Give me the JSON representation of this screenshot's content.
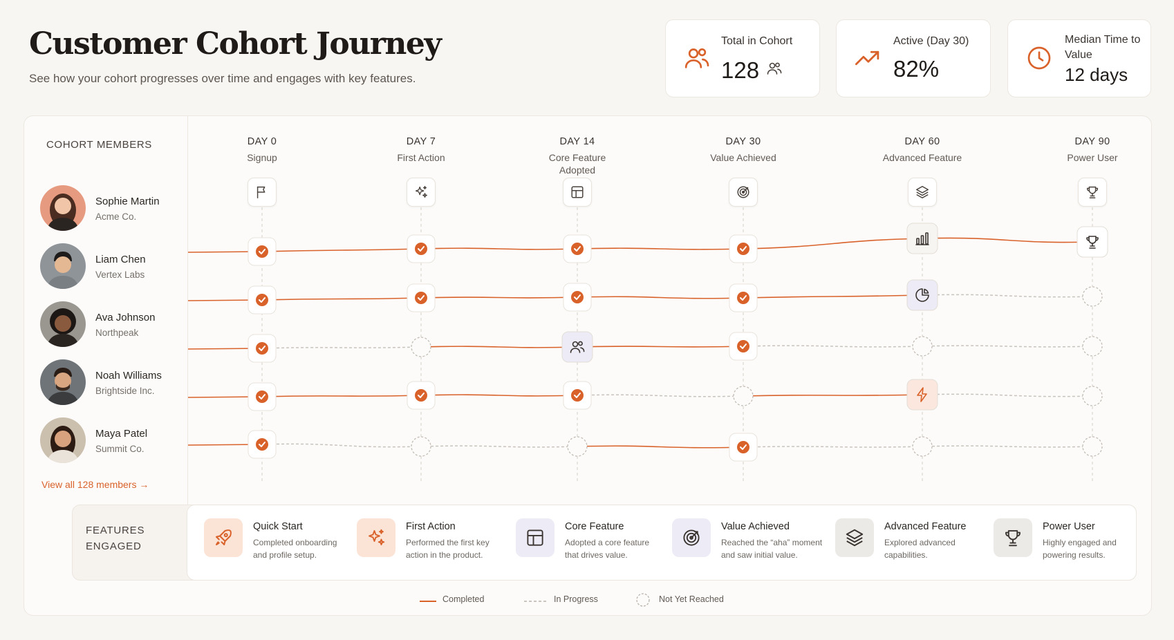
{
  "header": {
    "title": "Customer Cohort Journey",
    "subtitle": "See how your cohort progresses over time and engages with key features."
  },
  "stats": [
    {
      "label": "Total in Cohort",
      "value": "128",
      "icon": "users-icon"
    },
    {
      "label": "Active (Day 30)",
      "value": "82%",
      "icon": "trending-up-icon"
    },
    {
      "label": "Median Time to Value",
      "value": "12 days",
      "icon": "clock-icon"
    }
  ],
  "members": {
    "heading": "COHORT MEMBERS",
    "items": [
      {
        "name": "Sophie Martin",
        "company": "Acme Co."
      },
      {
        "name": "Liam Chen",
        "company": "Vertex Labs"
      },
      {
        "name": "Ava Johnson",
        "company": "Northpeak"
      },
      {
        "name": "Noah Williams",
        "company": "Brightside Inc."
      },
      {
        "name": "Maya Patel",
        "company": "Summit Co."
      }
    ],
    "view_all": "View all 128 members →"
  },
  "milestones": [
    {
      "day": "DAY 0",
      "label": "Signup",
      "icon": "flag-icon"
    },
    {
      "day": "DAY 7",
      "label": "First Action",
      "icon": "sparkles-icon"
    },
    {
      "day": "DAY 14",
      "label": "Core Feature Adopted",
      "icon": "layout-icon"
    },
    {
      "day": "DAY 30",
      "label": "Value Achieved",
      "icon": "target-icon"
    },
    {
      "day": "DAY 60",
      "label": "Advanced Feature",
      "icon": "layers-icon"
    },
    {
      "day": "DAY 90",
      "label": "Power User",
      "icon": "trophy-icon"
    }
  ],
  "journeys": [
    [
      "completed",
      "completed",
      "completed",
      "completed",
      "feature:chart",
      "feature:trophy"
    ],
    [
      "completed",
      "completed",
      "completed",
      "completed",
      "feature:pie",
      "not-reached"
    ],
    [
      "completed",
      "not-reached",
      "feature:users",
      "completed",
      "not-reached",
      "not-reached"
    ],
    [
      "completed",
      "completed",
      "completed",
      "not-reached",
      "feature:bolt",
      "not-reached"
    ],
    [
      "completed",
      "not-reached",
      "not-reached",
      "completed",
      "not-reached",
      "not-reached"
    ]
  ],
  "features": {
    "heading_line1": "FEATURES",
    "heading_line2": "ENGAGED",
    "items": [
      {
        "title": "Quick Start",
        "desc": "Completed onboarding and profile setup.",
        "icon": "rocket-icon"
      },
      {
        "title": "First Action",
        "desc": "Performed the first key action in the product.",
        "icon": "sparkles-icon"
      },
      {
        "title": "Core Feature",
        "desc": "Adopted a core feature that drives value.",
        "icon": "layout-icon"
      },
      {
        "title": "Value Achieved",
        "desc": "Reached the “aha” moment and saw initial value.",
        "icon": "target-icon"
      },
      {
        "title": "Advanced Feature",
        "desc": "Explored advanced capabilities.",
        "icon": "layers-icon"
      },
      {
        "title": "Power User",
        "desc": "Highly engaged and powering results.",
        "icon": "trophy-icon"
      }
    ]
  },
  "legend": {
    "completed": "Completed",
    "in_progress": "In Progress",
    "not_reached": "Not Yet Reached"
  },
  "colors": {
    "accent": "#d9622b",
    "dashed": "#c8c3bd",
    "lavender": "#ecebf6"
  }
}
